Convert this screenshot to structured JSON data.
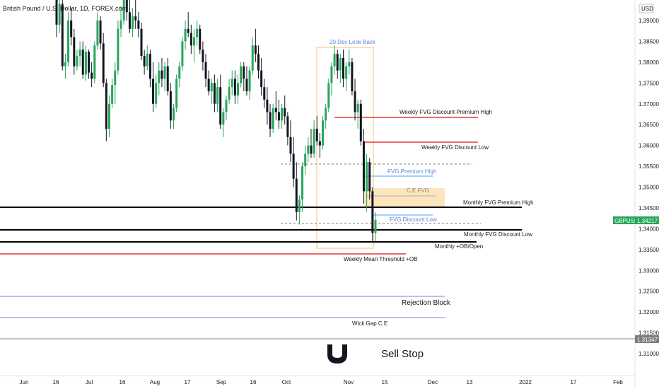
{
  "chart_data": {
    "type": "candlestick",
    "title": "British Pound / U.S. Dollar, 1D, FOREX.com",
    "currency": "USD",
    "symbol": "GBPUSD",
    "last_price": 1.34217,
    "y_range": [
      1.305,
      1.395
    ],
    "y_ticks": [
      1.31,
      1.315,
      1.32,
      1.325,
      1.33,
      1.335,
      1.34,
      1.345,
      1.35,
      1.355,
      1.36,
      1.365,
      1.37,
      1.375,
      1.38,
      1.385,
      1.39
    ],
    "y_tick_labels": [
      "1.31000",
      "1.31500",
      "1.32000",
      "1.32500",
      "1.33000",
      "1.33500",
      "1.34000",
      "1.34500",
      "1.35000",
      "1.35500",
      "1.36000",
      "1.36500",
      "1.37000",
      "1.37500",
      "1.38000",
      "1.38500",
      "1.39000"
    ],
    "price_tag_extra": "1.31347",
    "x_labels": [
      "Jun",
      "16",
      "Jul",
      "16",
      "Aug",
      "17",
      "Sep",
      "16",
      "Oct",
      "Nov",
      "15",
      "Dec",
      "13",
      "2022",
      "17",
      "Feb"
    ],
    "x_label_bar_index": [
      0,
      12,
      22,
      33,
      44,
      56,
      66,
      78,
      89,
      111,
      122,
      133,
      143,
      155,
      166,
      177
    ],
    "candles": [
      [
        1.3975,
        1.3985,
        1.386,
        1.389
      ],
      [
        1.389,
        1.396,
        1.387,
        1.394
      ],
      [
        1.394,
        1.395,
        1.378,
        1.379
      ],
      [
        1.379,
        1.382,
        1.376,
        1.38
      ],
      [
        1.38,
        1.392,
        1.379,
        1.39
      ],
      [
        1.39,
        1.393,
        1.384,
        1.386
      ],
      [
        1.386,
        1.388,
        1.377,
        1.379
      ],
      [
        1.379,
        1.383,
        1.378,
        1.3815
      ],
      [
        1.3815,
        1.385,
        1.379,
        1.383
      ],
      [
        1.383,
        1.385,
        1.376,
        1.377
      ],
      [
        1.377,
        1.384,
        1.3755,
        1.3825
      ],
      [
        1.3825,
        1.383,
        1.376,
        1.3775
      ],
      [
        1.3775,
        1.38,
        1.374,
        1.376
      ],
      [
        1.376,
        1.385,
        1.375,
        1.384
      ],
      [
        1.384,
        1.392,
        1.383,
        1.39
      ],
      [
        1.39,
        1.391,
        1.383,
        1.3845
      ],
      [
        1.3845,
        1.387,
        1.374,
        1.375
      ],
      [
        1.375,
        1.376,
        1.361,
        1.364
      ],
      [
        1.364,
        1.372,
        1.362,
        1.37
      ],
      [
        1.37,
        1.376,
        1.369,
        1.3745
      ],
      [
        1.3745,
        1.38,
        1.37,
        1.378
      ],
      [
        1.378,
        1.39,
        1.377,
        1.388
      ],
      [
        1.388,
        1.3935,
        1.386,
        1.39
      ],
      [
        1.39,
        1.398,
        1.389,
        1.396
      ],
      [
        1.396,
        1.399,
        1.39,
        1.392
      ],
      [
        1.392,
        1.396,
        1.387,
        1.388
      ],
      [
        1.388,
        1.393,
        1.386,
        1.391
      ],
      [
        1.391,
        1.395,
        1.388,
        1.39
      ],
      [
        1.39,
        1.392,
        1.386,
        1.388
      ],
      [
        1.388,
        1.3895,
        1.3805,
        1.3815
      ],
      [
        1.3815,
        1.383,
        1.377,
        1.379
      ],
      [
        1.379,
        1.384,
        1.378,
        1.382
      ],
      [
        1.382,
        1.383,
        1.374,
        1.376
      ],
      [
        1.376,
        1.38,
        1.368,
        1.37
      ],
      [
        1.37,
        1.377,
        1.369,
        1.375
      ],
      [
        1.375,
        1.38,
        1.372,
        1.378
      ],
      [
        1.378,
        1.381,
        1.374,
        1.376
      ],
      [
        1.376,
        1.38,
        1.373,
        1.379
      ],
      [
        1.379,
        1.381,
        1.372,
        1.373
      ],
      [
        1.373,
        1.375,
        1.364,
        1.366
      ],
      [
        1.366,
        1.37,
        1.364,
        1.369
      ],
      [
        1.369,
        1.377,
        1.368,
        1.376
      ],
      [
        1.376,
        1.38,
        1.374,
        1.379
      ],
      [
        1.379,
        1.386,
        1.378,
        1.385
      ],
      [
        1.385,
        1.39,
        1.383,
        1.388
      ],
      [
        1.388,
        1.392,
        1.386,
        1.387
      ],
      [
        1.387,
        1.389,
        1.382,
        1.384
      ],
      [
        1.384,
        1.388,
        1.38,
        1.386
      ],
      [
        1.386,
        1.39,
        1.384,
        1.388
      ],
      [
        1.388,
        1.389,
        1.382,
        1.383
      ],
      [
        1.383,
        1.385,
        1.378,
        1.38
      ],
      [
        1.38,
        1.382,
        1.374,
        1.376
      ],
      [
        1.376,
        1.378,
        1.372,
        1.373
      ],
      [
        1.373,
        1.376,
        1.37,
        1.375
      ],
      [
        1.375,
        1.377,
        1.368,
        1.37
      ],
      [
        1.37,
        1.376,
        1.368,
        1.374
      ],
      [
        1.374,
        1.377,
        1.364,
        1.365
      ],
      [
        1.365,
        1.369,
        1.362,
        1.368
      ],
      [
        1.368,
        1.372,
        1.366,
        1.371
      ],
      [
        1.371,
        1.376,
        1.37,
        1.374
      ],
      [
        1.374,
        1.378,
        1.372,
        1.376
      ],
      [
        1.376,
        1.378,
        1.37,
        1.372
      ],
      [
        1.372,
        1.377,
        1.37,
        1.375
      ],
      [
        1.375,
        1.38,
        1.374,
        1.379
      ],
      [
        1.379,
        1.38,
        1.373,
        1.376
      ],
      [
        1.376,
        1.379,
        1.372,
        1.373
      ],
      [
        1.373,
        1.379,
        1.371,
        1.378
      ],
      [
        1.378,
        1.386,
        1.377,
        1.384
      ],
      [
        1.384,
        1.388,
        1.38,
        1.382
      ],
      [
        1.382,
        1.384,
        1.376,
        1.378
      ],
      [
        1.378,
        1.381,
        1.372,
        1.374
      ],
      [
        1.374,
        1.376,
        1.369,
        1.371
      ],
      [
        1.371,
        1.374,
        1.365,
        1.368
      ],
      [
        1.368,
        1.37,
        1.362,
        1.364
      ],
      [
        1.364,
        1.37,
        1.363,
        1.369
      ],
      [
        1.369,
        1.373,
        1.366,
        1.368
      ],
      [
        1.368,
        1.371,
        1.364,
        1.366
      ],
      [
        1.366,
        1.37,
        1.364,
        1.369
      ],
      [
        1.369,
        1.372,
        1.365,
        1.367
      ],
      [
        1.367,
        1.368,
        1.36,
        1.362
      ],
      [
        1.362,
        1.366,
        1.356,
        1.358
      ],
      [
        1.358,
        1.362,
        1.35,
        1.352
      ],
      [
        1.352,
        1.356,
        1.342,
        1.344
      ],
      [
        1.344,
        1.348,
        1.341,
        1.347
      ],
      [
        1.347,
        1.356,
        1.344,
        1.355
      ],
      [
        1.355,
        1.36,
        1.353,
        1.358
      ],
      [
        1.358,
        1.362,
        1.356,
        1.36
      ],
      [
        1.36,
        1.364,
        1.357,
        1.358
      ],
      [
        1.358,
        1.366,
        1.357,
        1.364
      ],
      [
        1.364,
        1.367,
        1.36,
        1.361
      ],
      [
        1.361,
        1.363,
        1.357,
        1.36
      ],
      [
        1.36,
        1.367,
        1.359,
        1.366
      ],
      [
        1.366,
        1.37,
        1.364,
        1.369
      ],
      [
        1.369,
        1.376,
        1.368,
        1.375
      ],
      [
        1.375,
        1.38,
        1.372,
        1.379
      ],
      [
        1.379,
        1.384,
        1.377,
        1.382
      ],
      [
        1.382,
        1.383,
        1.376,
        1.378
      ],
      [
        1.378,
        1.382,
        1.375,
        1.381
      ],
      [
        1.381,
        1.383,
        1.374,
        1.376
      ],
      [
        1.376,
        1.38,
        1.373,
        1.379
      ],
      [
        1.379,
        1.383,
        1.377,
        1.38
      ],
      [
        1.38,
        1.381,
        1.372,
        1.373
      ],
      [
        1.373,
        1.376,
        1.366,
        1.368
      ],
      [
        1.368,
        1.371,
        1.364,
        1.37
      ],
      [
        1.37,
        1.371,
        1.36,
        1.361
      ],
      [
        1.361,
        1.364,
        1.346,
        1.349
      ],
      [
        1.349,
        1.358,
        1.344,
        1.356
      ],
      [
        1.356,
        1.357,
        1.347,
        1.349
      ],
      [
        1.349,
        1.35,
        1.337,
        1.339
      ],
      [
        1.339,
        1.344,
        1.337,
        1.3421
      ]
    ],
    "candle_positions": [
      [
        2,
        80
      ],
      [
        4,
        84
      ],
      [
        6,
        90
      ],
      [
        8,
        94
      ],
      [
        10,
        99
      ],
      [
        12,
        103
      ],
      [
        14,
        108
      ],
      [
        16,
        112
      ],
      [
        18,
        117
      ],
      [
        20,
        121
      ],
      [
        22,
        127
      ],
      [
        24,
        131
      ],
      [
        26,
        136
      ],
      [
        28,
        140
      ],
      [
        30,
        145
      ],
      [
        32,
        149
      ],
      [
        34,
        154
      ],
      [
        36,
        160
      ],
      [
        38,
        164
      ],
      [
        40,
        168
      ],
      [
        42,
        173
      ],
      [
        44,
        177
      ],
      [
        46,
        182
      ],
      [
        48,
        186
      ],
      [
        50,
        191
      ],
      [
        52,
        196
      ],
      [
        54,
        200
      ],
      [
        56,
        205
      ],
      [
        58,
        209
      ],
      [
        60,
        214
      ],
      [
        62,
        218
      ],
      [
        64,
        222
      ],
      [
        66,
        227
      ],
      [
        68,
        232
      ],
      [
        70,
        236
      ],
      [
        72,
        241
      ],
      [
        74,
        245
      ],
      [
        76,
        250
      ],
      [
        78,
        254
      ],
      [
        80,
        259
      ],
      [
        82,
        263
      ],
      [
        84,
        268
      ],
      [
        86,
        272
      ],
      [
        88,
        277
      ],
      [
        90,
        282
      ],
      [
        92,
        286
      ],
      [
        94,
        291
      ],
      [
        96,
        295
      ],
      [
        98,
        300
      ],
      [
        100,
        304
      ],
      [
        102,
        309
      ],
      [
        104,
        313
      ],
      [
        106,
        318
      ],
      [
        108,
        322
      ],
      [
        110,
        327
      ],
      [
        112,
        331
      ],
      [
        114,
        336
      ],
      [
        116,
        340
      ],
      [
        118,
        345
      ],
      [
        120,
        349
      ],
      [
        122,
        354
      ],
      [
        124,
        358
      ],
      [
        126,
        363
      ],
      [
        128,
        367
      ],
      [
        130,
        372
      ],
      [
        132,
        377
      ],
      [
        134,
        381
      ],
      [
        136,
        386
      ],
      [
        138,
        390
      ],
      [
        140,
        395
      ],
      [
        142,
        399
      ],
      [
        144,
        404
      ],
      [
        146,
        408
      ],
      [
        148,
        413
      ],
      [
        150,
        417
      ],
      [
        152,
        422
      ],
      [
        154,
        426
      ],
      [
        156,
        431
      ],
      [
        158,
        436
      ],
      [
        160,
        440
      ],
      [
        162,
        445
      ],
      [
        164,
        449
      ],
      [
        166,
        454
      ],
      [
        168,
        458
      ],
      [
        170,
        463
      ],
      [
        172,
        467
      ],
      [
        174,
        472
      ],
      [
        176,
        476
      ],
      [
        178,
        481
      ],
      [
        180,
        485
      ],
      [
        182,
        490
      ],
      [
        184,
        494
      ],
      [
        186,
        499
      ],
      [
        188,
        503
      ],
      [
        190,
        508
      ],
      [
        192,
        512
      ],
      [
        194,
        517
      ],
      [
        196,
        521
      ],
      [
        198,
        526
      ],
      [
        200,
        531
      ]
    ],
    "levels": [
      {
        "name": "Weekly FVG Discount Premium High",
        "price": 1.367,
        "color": "#e53935"
      },
      {
        "name": "Weekly FVG Discount Low",
        "price": 1.3606,
        "color": "#e53935"
      },
      {
        "name": "FVG Premium High",
        "price": 1.3526,
        "color": "#42a5f5"
      },
      {
        "name": "C.E FVG",
        "price": 1.3484,
        "color": "#b0b0b0"
      },
      {
        "name": "Monthly FVG Premium High",
        "price": 1.3451,
        "color": "#000000"
      },
      {
        "name": "FVG Discount Low",
        "price": 1.3432,
        "color": "#42a5f5"
      },
      {
        "name": "Monthly FVG Discount Low",
        "price": 1.3398,
        "color": "#000000"
      },
      {
        "name": "Monthly +OB/Open",
        "price": 1.3368,
        "color": "#000000"
      },
      {
        "name": "Weekly Mean Threshold +OB",
        "price": 1.334,
        "color": "#e53935"
      },
      {
        "name": "Rejection Block",
        "price": 1.3235,
        "color": "#9575cd"
      },
      {
        "name": "Wick Gap C.E",
        "price": 1.3182,
        "color": "#9575cd"
      },
      {
        "name": "Sell Stop",
        "price": 1.3135,
        "color": "#888888"
      }
    ],
    "lookback_label": "20 Day Look Back",
    "grid": false
  },
  "labels": {
    "title": "British Pound / U.S. Dollar, 1D, FOREX.com",
    "currency": "USD",
    "lookback": "20 Day Look Back",
    "weekly_prem_high": "Weekly FVG Discount Premium High",
    "weekly_disc_low": "Weekly FVG Discount Low",
    "fvg_prem_high": "FVG Premium High",
    "ce_fvg": "C.E FVG",
    "monthly_prem_high": "Monthly FVG Premium High",
    "fvg_disc_low": "FVG Discount Low",
    "monthly_disc_low": "Monthly FVG Discount Low",
    "monthly_ob": "Monthly +OB/Open",
    "weekly_mean": "Weekly Mean Threshold +OB",
    "rejection_block": "Rejection Block",
    "wick_gap": "Wick Gap C.E",
    "sell_stop": "Sell Stop",
    "symbol_tag": "GBPUSD",
    "price_tag": "1.34217",
    "price_tag_extra": "1.31347"
  },
  "colors": {
    "up": "#26a65b",
    "down": "#131722",
    "accent_blue": "#5b86d6",
    "red_line": "#e53935",
    "purple_line": "#9575cd",
    "orange_box": "#f5c27a",
    "ce_fill": "#fde5bd",
    "symbol_tag_bg": "#26a65b"
  },
  "icons": {
    "brand_logo": "magnet-icon"
  }
}
